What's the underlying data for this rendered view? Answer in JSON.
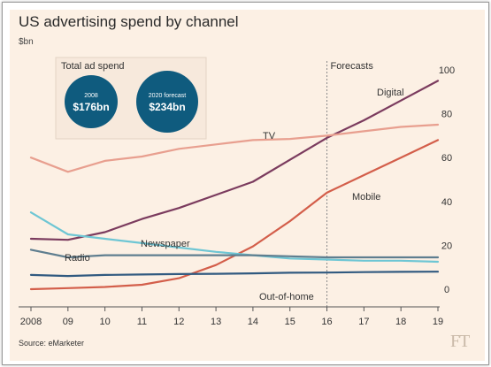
{
  "chart_data": {
    "type": "line",
    "title": "US advertising spend by channel",
    "ylabel": "$bn",
    "xlabel": "",
    "x": [
      2008,
      2009,
      2010,
      2011,
      2012,
      2013,
      2014,
      2015,
      2016,
      2017,
      2018,
      2019
    ],
    "x_tick_labels": [
      "2008",
      "09",
      "10",
      "11",
      "12",
      "13",
      "14",
      "15",
      "16",
      "17",
      "18",
      "19"
    ],
    "ylim": [
      0,
      100
    ],
    "y_ticks": [
      0,
      20,
      40,
      60,
      80,
      100
    ],
    "forecast_start": 2016,
    "forecast_label": "Forecasts",
    "grid": false,
    "legend": "inline labels",
    "series": [
      {
        "name": "Digital",
        "color": "#7b3b5e",
        "values": [
          23,
          22.5,
          26,
          32,
          37,
          43,
          49,
          59,
          69,
          77,
          86,
          95
        ]
      },
      {
        "name": "TV",
        "color": "#e89f8f",
        "values": [
          60,
          53.5,
          58.5,
          60.5,
          64,
          66,
          68,
          68.5,
          70,
          72,
          74,
          75
        ]
      },
      {
        "name": "Mobile",
        "color": "#d35e4a",
        "values": [
          0,
          0.5,
          1,
          2,
          5,
          11,
          19.5,
          31,
          44,
          52,
          60,
          68
        ]
      },
      {
        "name": "Newspaper",
        "color": "#6ec6d4",
        "values": [
          35,
          25,
          23,
          21,
          19,
          17,
          15.5,
          14,
          13.5,
          13,
          13,
          12.5
        ]
      },
      {
        "name": "Radio",
        "color": "#5f7e8f",
        "values": [
          18,
          14.5,
          15.5,
          15.5,
          15.5,
          15.5,
          15.5,
          15,
          14.5,
          14.5,
          14.5,
          14.5
        ]
      },
      {
        "name": "Out-of-home",
        "color": "#315a80",
        "values": [
          6.5,
          6,
          6.5,
          6.7,
          6.9,
          7,
          7.2,
          7.5,
          7.6,
          7.8,
          7.9,
          8
        ]
      }
    ]
  },
  "inset": {
    "title": "Total ad spend",
    "bubbles": [
      {
        "label": "2008",
        "value": "$176bn"
      },
      {
        "label": "2020 forecast",
        "value": "$234bn"
      }
    ]
  },
  "source": "Source: eMarketer",
  "brand": "FT",
  "colors": {
    "bubble": "#0f5b7e",
    "background": "#fcf0e4",
    "forecast_line": "#8a8a8a"
  }
}
